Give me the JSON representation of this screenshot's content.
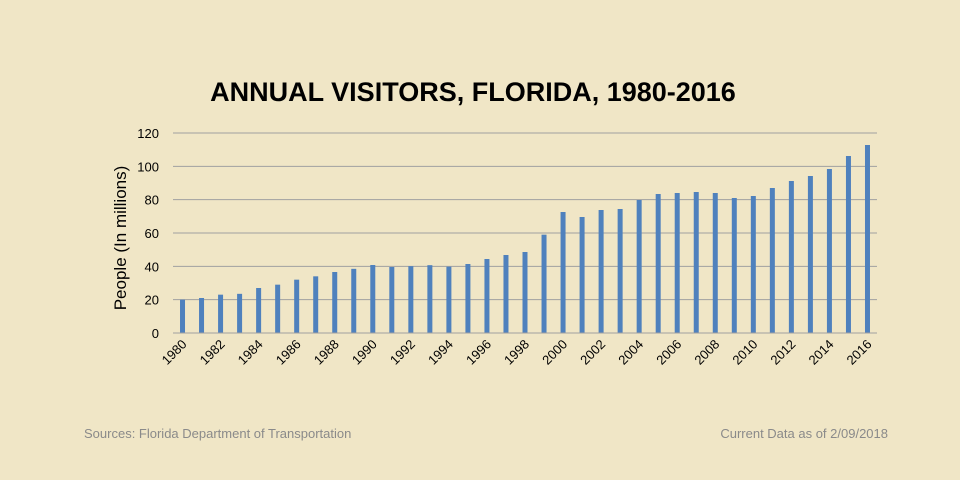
{
  "chart_data": {
    "type": "bar",
    "title": "ANNUAL VISITORS, FLORIDA, 1980-2016",
    "xlabel": "",
    "ylabel": "People (In millions)",
    "ylim": [
      0,
      120
    ],
    "yticks": [
      0,
      20,
      40,
      60,
      80,
      100,
      120
    ],
    "grid": true,
    "legend": "none",
    "categories": [
      "1980",
      "1981",
      "1982",
      "1983",
      "1984",
      "1985",
      "1986",
      "1987",
      "1988",
      "1989",
      "1990",
      "1991",
      "1992",
      "1993",
      "1994",
      "1995",
      "1996",
      "1997",
      "1998",
      "1999",
      "2000",
      "2001",
      "2002",
      "2003",
      "2004",
      "2005",
      "2006",
      "2007",
      "2008",
      "2009",
      "2010",
      "2011",
      "2012",
      "2013",
      "2014",
      "2015",
      "2016"
    ],
    "xtick_labels_shown": [
      "1980",
      "1982",
      "1984",
      "1986",
      "1988",
      "1990",
      "1992",
      "1994",
      "1996",
      "1998",
      "2000",
      "2002",
      "2004",
      "2006",
      "2008",
      "2010",
      "2012",
      "2014",
      "2016"
    ],
    "values": [
      20,
      21,
      23,
      23.5,
      27,
      29,
      32,
      34,
      36.6,
      38.5,
      40.8,
      39.6,
      40.1,
      40.7,
      39.8,
      41.4,
      44.4,
      46.8,
      48.6,
      59,
      72.6,
      69.6,
      73.8,
      74.4,
      79.8,
      83.4,
      84,
      84.6,
      84,
      81,
      82.2,
      87,
      91.2,
      94.2,
      98.4,
      106.2,
      112.8
    ],
    "bar_color": "#4f81bd"
  },
  "footer": {
    "source": "Sources: Florida Department of Transportation",
    "date": "Current Data as of 2/09/2018"
  }
}
